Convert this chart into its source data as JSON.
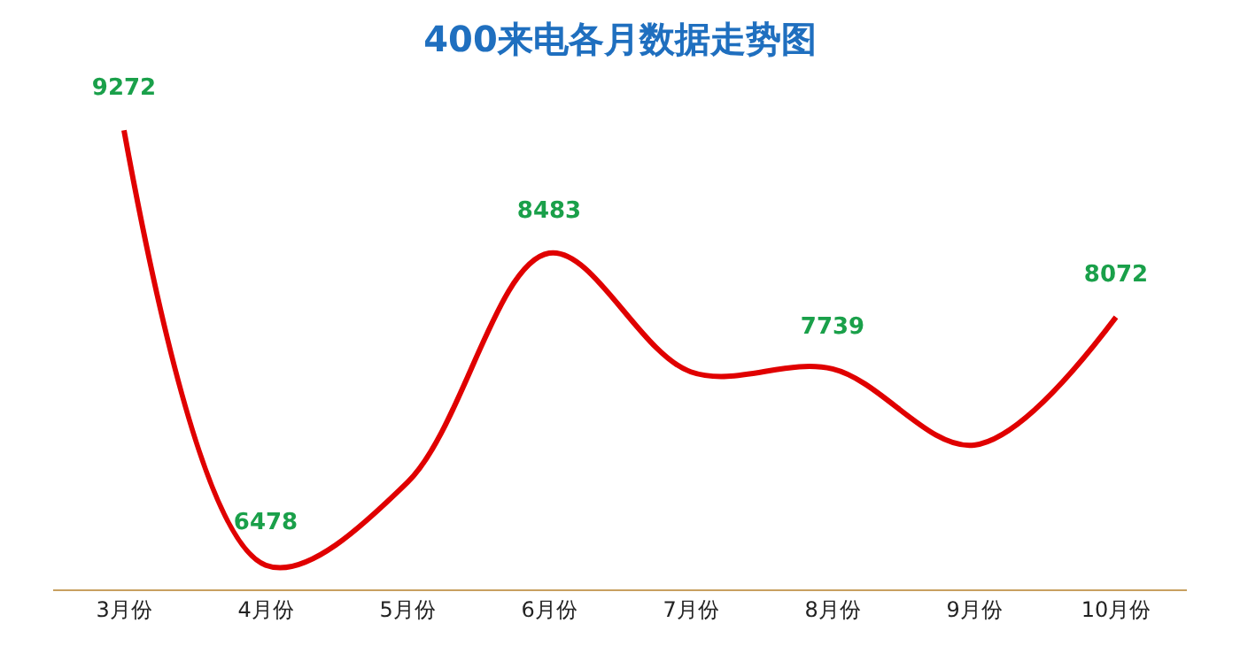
{
  "chart_data": {
    "type": "line",
    "title": "400来电各月数据走势图",
    "categories": [
      "3月份",
      "4月份",
      "5月份",
      "6月份",
      "7月份",
      "8月份",
      "9月份",
      "10月份"
    ],
    "series": [
      {
        "color": "#e00000",
        "values": [
          9272,
          6478,
          7010,
          8483,
          7720,
          7739,
          7250,
          8072
        ],
        "value_labels": [
          "9272",
          "6478",
          null,
          "8483",
          null,
          "7739",
          null,
          "8072"
        ]
      }
    ],
    "tick_labels": "x",
    "marker": "none",
    "line_style": "solid"
  }
}
